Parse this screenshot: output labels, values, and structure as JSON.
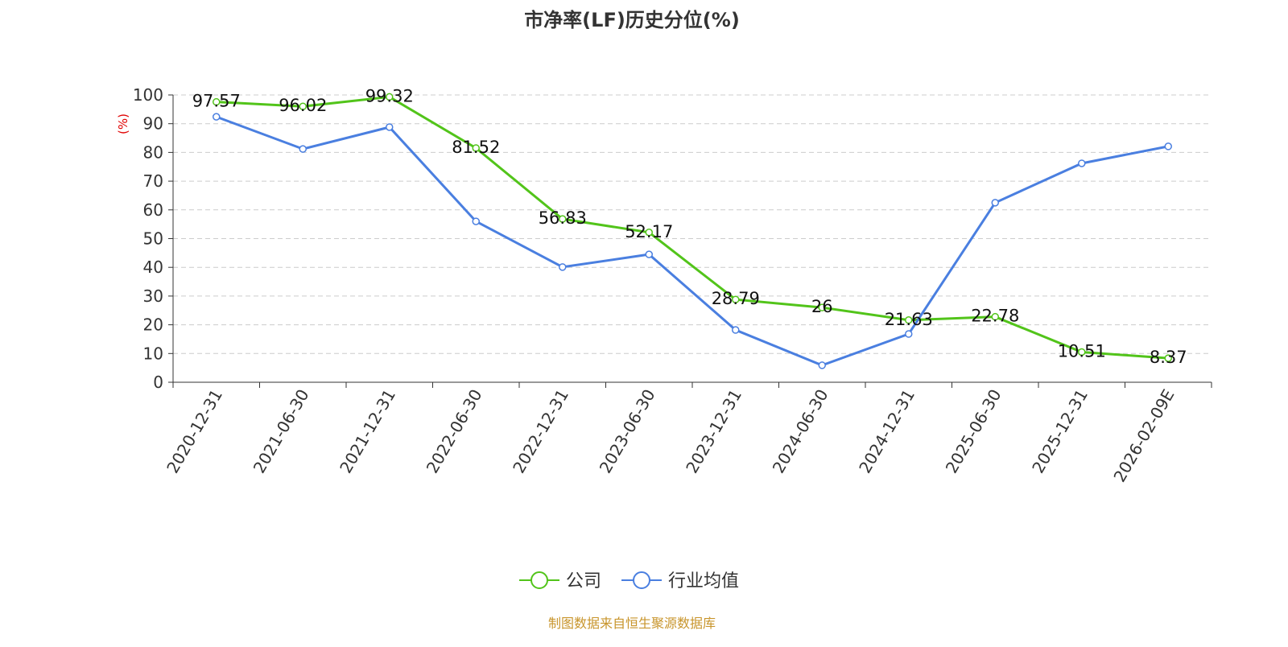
{
  "chart_data": {
    "type": "line",
    "title": "市净率(LF)历史分位(%)",
    "ylabel": "(%)",
    "xlabel": "",
    "ylim": [
      0,
      100
    ],
    "yticks": [
      0,
      10,
      20,
      30,
      40,
      50,
      60,
      70,
      80,
      90,
      100
    ],
    "grid": true,
    "legend_position": "bottom",
    "categories": [
      "2020-12-31",
      "2021-06-30",
      "2021-12-31",
      "2022-06-30",
      "2022-12-31",
      "2023-06-30",
      "2023-12-31",
      "2024-06-30",
      "2024-12-31",
      "2025-06-30",
      "2025-12-31",
      "2026-02-09E"
    ],
    "series": [
      {
        "name": "公司",
        "color": "#52c41a",
        "labeled": true,
        "values": [
          97.57,
          96.02,
          99.32,
          81.52,
          56.83,
          52.17,
          28.79,
          26,
          21.63,
          22.78,
          10.51,
          8.37
        ]
      },
      {
        "name": "行业均值",
        "color": "#4a7fe0",
        "labeled": false,
        "values": [
          92.4,
          81.2,
          88.8,
          56.0,
          40.1,
          44.5,
          18.2,
          5.9,
          16.8,
          62.5,
          76.2,
          82.1
        ]
      }
    ],
    "source": "制图数据来自恒生聚源数据库",
    "source_color": "#c8952c",
    "ylabel_color": "#e00000"
  }
}
